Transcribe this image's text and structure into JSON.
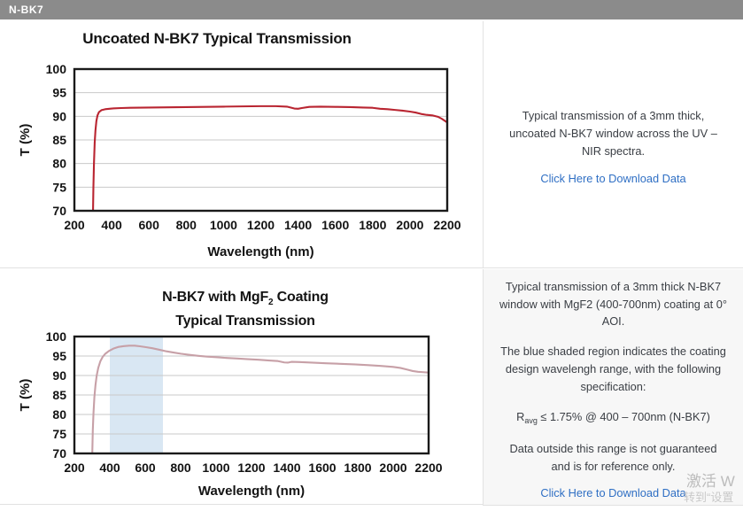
{
  "header": {
    "label": "N-BK7"
  },
  "chart_data": [
    {
      "type": "line",
      "title": "Uncoated N-BK7 Typical Transmission",
      "xlabel": "Wavelength (nm)",
      "ylabel": "T (%)",
      "xlim": [
        200,
        2200
      ],
      "ylim": [
        70,
        100
      ],
      "xticks": [
        200,
        400,
        600,
        800,
        1000,
        1200,
        1400,
        1600,
        1800,
        2000,
        2200
      ],
      "yticks": [
        70,
        75,
        80,
        85,
        90,
        95,
        100
      ],
      "grid": "horizontal",
      "line_color": "#b92531",
      "points": [
        [
          297,
          60
        ],
        [
          300,
          70
        ],
        [
          302,
          75
        ],
        [
          305,
          80
        ],
        [
          309,
          84.5
        ],
        [
          313,
          87
        ],
        [
          318,
          89
        ],
        [
          324,
          90.2
        ],
        [
          332,
          90.9
        ],
        [
          345,
          91.3
        ],
        [
          365,
          91.5
        ],
        [
          400,
          91.65
        ],
        [
          450,
          91.75
        ],
        [
          500,
          91.8
        ],
        [
          600,
          91.85
        ],
        [
          700,
          91.9
        ],
        [
          800,
          91.95
        ],
        [
          900,
          92.0
        ],
        [
          1000,
          92.05
        ],
        [
          1100,
          92.1
        ],
        [
          1200,
          92.15
        ],
        [
          1280,
          92.15
        ],
        [
          1340,
          92.05
        ],
        [
          1380,
          91.65
        ],
        [
          1400,
          91.6
        ],
        [
          1420,
          91.75
        ],
        [
          1460,
          92.0
        ],
        [
          1520,
          92.05
        ],
        [
          1600,
          92.0
        ],
        [
          1680,
          91.95
        ],
        [
          1750,
          91.85
        ],
        [
          1800,
          91.8
        ],
        [
          1840,
          91.6
        ],
        [
          1880,
          91.5
        ],
        [
          1920,
          91.35
        ],
        [
          1960,
          91.2
        ],
        [
          2000,
          91.0
        ],
        [
          2030,
          90.8
        ],
        [
          2060,
          90.5
        ],
        [
          2090,
          90.3
        ],
        [
          2120,
          90.2
        ],
        [
          2150,
          89.9
        ],
        [
          2170,
          89.5
        ],
        [
          2185,
          89.1
        ],
        [
          2200,
          88.7
        ]
      ]
    },
    {
      "type": "line",
      "title_prefix": "N-BK7 with MgF",
      "title_sub": "2",
      "title_suffix": " Coating",
      "title_line2": "Typical Transmission",
      "xlabel": "Wavelength (nm)",
      "ylabel": "T (%)",
      "xlim": [
        200,
        2200
      ],
      "ylim": [
        70,
        100
      ],
      "xticks": [
        200,
        400,
        600,
        800,
        1000,
        1200,
        1400,
        1600,
        1800,
        2000,
        2200
      ],
      "yticks": [
        70,
        75,
        80,
        85,
        90,
        95,
        100
      ],
      "grid": "horizontal",
      "line_color": "#c7a0a7",
      "band": [
        400,
        700
      ],
      "band_color": "#d9e7f3",
      "points": [
        [
          298,
          62
        ],
        [
          301,
          70
        ],
        [
          304,
          76
        ],
        [
          308,
          80.5
        ],
        [
          313,
          84.5
        ],
        [
          319,
          87.5
        ],
        [
          326,
          90
        ],
        [
          335,
          92
        ],
        [
          347,
          93.7
        ],
        [
          360,
          94.8
        ],
        [
          375,
          95.6
        ],
        [
          395,
          96.3
        ],
        [
          420,
          96.9
        ],
        [
          450,
          97.35
        ],
        [
          480,
          97.55
        ],
        [
          510,
          97.65
        ],
        [
          540,
          97.65
        ],
        [
          570,
          97.5
        ],
        [
          600,
          97.3
        ],
        [
          640,
          97.0
        ],
        [
          680,
          96.6
        ],
        [
          720,
          96.2
        ],
        [
          760,
          95.9
        ],
        [
          800,
          95.6
        ],
        [
          850,
          95.3
        ],
        [
          900,
          95.05
        ],
        [
          950,
          94.85
        ],
        [
          1000,
          94.7
        ],
        [
          1060,
          94.5
        ],
        [
          1120,
          94.35
        ],
        [
          1180,
          94.2
        ],
        [
          1240,
          94.05
        ],
        [
          1300,
          93.85
        ],
        [
          1350,
          93.7
        ],
        [
          1385,
          93.35
        ],
        [
          1405,
          93.3
        ],
        [
          1425,
          93.5
        ],
        [
          1470,
          93.45
        ],
        [
          1540,
          93.3
        ],
        [
          1620,
          93.15
        ],
        [
          1700,
          93.0
        ],
        [
          1780,
          92.85
        ],
        [
          1860,
          92.65
        ],
        [
          1930,
          92.45
        ],
        [
          2000,
          92.2
        ],
        [
          2040,
          91.95
        ],
        [
          2080,
          91.5
        ],
        [
          2110,
          91.15
        ],
        [
          2140,
          90.95
        ],
        [
          2170,
          90.85
        ],
        [
          2200,
          90.75
        ]
      ]
    }
  ],
  "panels": [
    {
      "text": "Typical transmission of a 3mm thick, uncoated N-BK7 window across the UV – NIR spectra.",
      "link": "Click Here to Download Data"
    },
    {
      "p1": "Typical transmission of a 3mm thick N-BK7 window with MgF2 (400-700nm) coating at 0° AOI.",
      "p2": "The blue shaded region indicates the coating design wavelengh range, with the following specification:",
      "spec": {
        "prefix": "R",
        "sub": "avg",
        "rest": " ≤ 1.75% @ 400 – 700nm (N-BK7)"
      },
      "p3": "Data outside this range is not guaranteed and is for reference only.",
      "link": "Click Here to Download Data"
    }
  ],
  "watermark": {
    "line1": "激活 W",
    "line2": "转到“设置"
  }
}
